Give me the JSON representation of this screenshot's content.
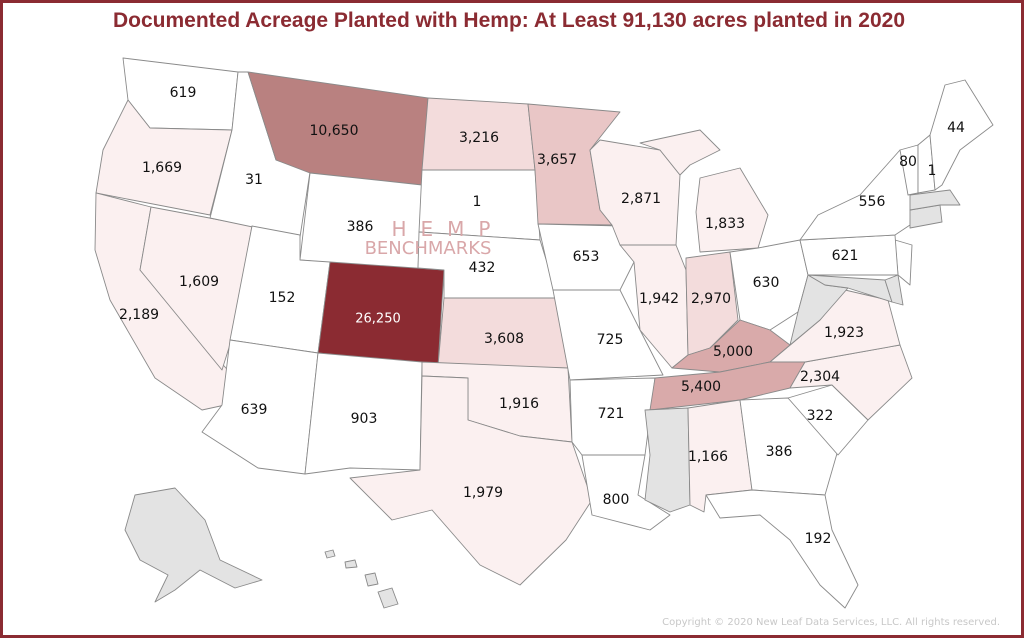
{
  "title": "Documented Acreage Planted with Hemp: At Least 91,130 acres planted in 2020",
  "watermark": {
    "line1": "HEMP",
    "line2": "BENCHMARKS"
  },
  "copyright": "Copyright © 2020 New Leaf Data Services, LLC. All rights reserved.",
  "colors": {
    "frame": "#8b2b32",
    "no_data": "#e3e3e3",
    "scale": [
      "#ffffff",
      "#fbf0f0",
      "#f3dcdc",
      "#e9c6c6",
      "#d9aaaa",
      "#b98180",
      "#8b2b32"
    ]
  },
  "states": [
    {
      "code": "WA",
      "label": "619"
    },
    {
      "code": "OR",
      "label": "1,669"
    },
    {
      "code": "ID",
      "label": "31"
    },
    {
      "code": "MT",
      "label": "10,650"
    },
    {
      "code": "ND",
      "label": "3,216"
    },
    {
      "code": "MN",
      "label": "3,657"
    },
    {
      "code": "WI",
      "label": "2,871"
    },
    {
      "code": "MI",
      "label": "1,833"
    },
    {
      "code": "ME",
      "label": "44"
    },
    {
      "code": "VT",
      "label": "80"
    },
    {
      "code": "NH",
      "label": "1"
    },
    {
      "code": "NY",
      "label": "556"
    },
    {
      "code": "WY",
      "label": "386"
    },
    {
      "code": "SD",
      "label": "1"
    },
    {
      "code": "NE",
      "label": "432"
    },
    {
      "code": "IA",
      "label": "653"
    },
    {
      "code": "IL",
      "label": "1,942"
    },
    {
      "code": "IN",
      "label": "2,970"
    },
    {
      "code": "OH",
      "label": "630"
    },
    {
      "code": "PA",
      "label": "621"
    },
    {
      "code": "CA",
      "label": "2,189"
    },
    {
      "code": "NV",
      "label": "1,609"
    },
    {
      "code": "UT",
      "label": "152"
    },
    {
      "code": "CO",
      "label": "26,250"
    },
    {
      "code": "KS",
      "label": "3,608"
    },
    {
      "code": "MO",
      "label": "725"
    },
    {
      "code": "KY",
      "label": "5,000"
    },
    {
      "code": "VA",
      "label": "1,923"
    },
    {
      "code": "TN",
      "label": "5,400"
    },
    {
      "code": "NC",
      "label": "2,304"
    },
    {
      "code": "AZ",
      "label": "639"
    },
    {
      "code": "NM",
      "label": "903"
    },
    {
      "code": "OK",
      "label": "1,916"
    },
    {
      "code": "AR",
      "label": "721"
    },
    {
      "code": "SC",
      "label": "322"
    },
    {
      "code": "AL",
      "label": "1,166"
    },
    {
      "code": "GA",
      "label": "386"
    },
    {
      "code": "TX",
      "label": "1,979"
    },
    {
      "code": "LA",
      "label": "800"
    },
    {
      "code": "FL",
      "label": "192"
    }
  ]
}
